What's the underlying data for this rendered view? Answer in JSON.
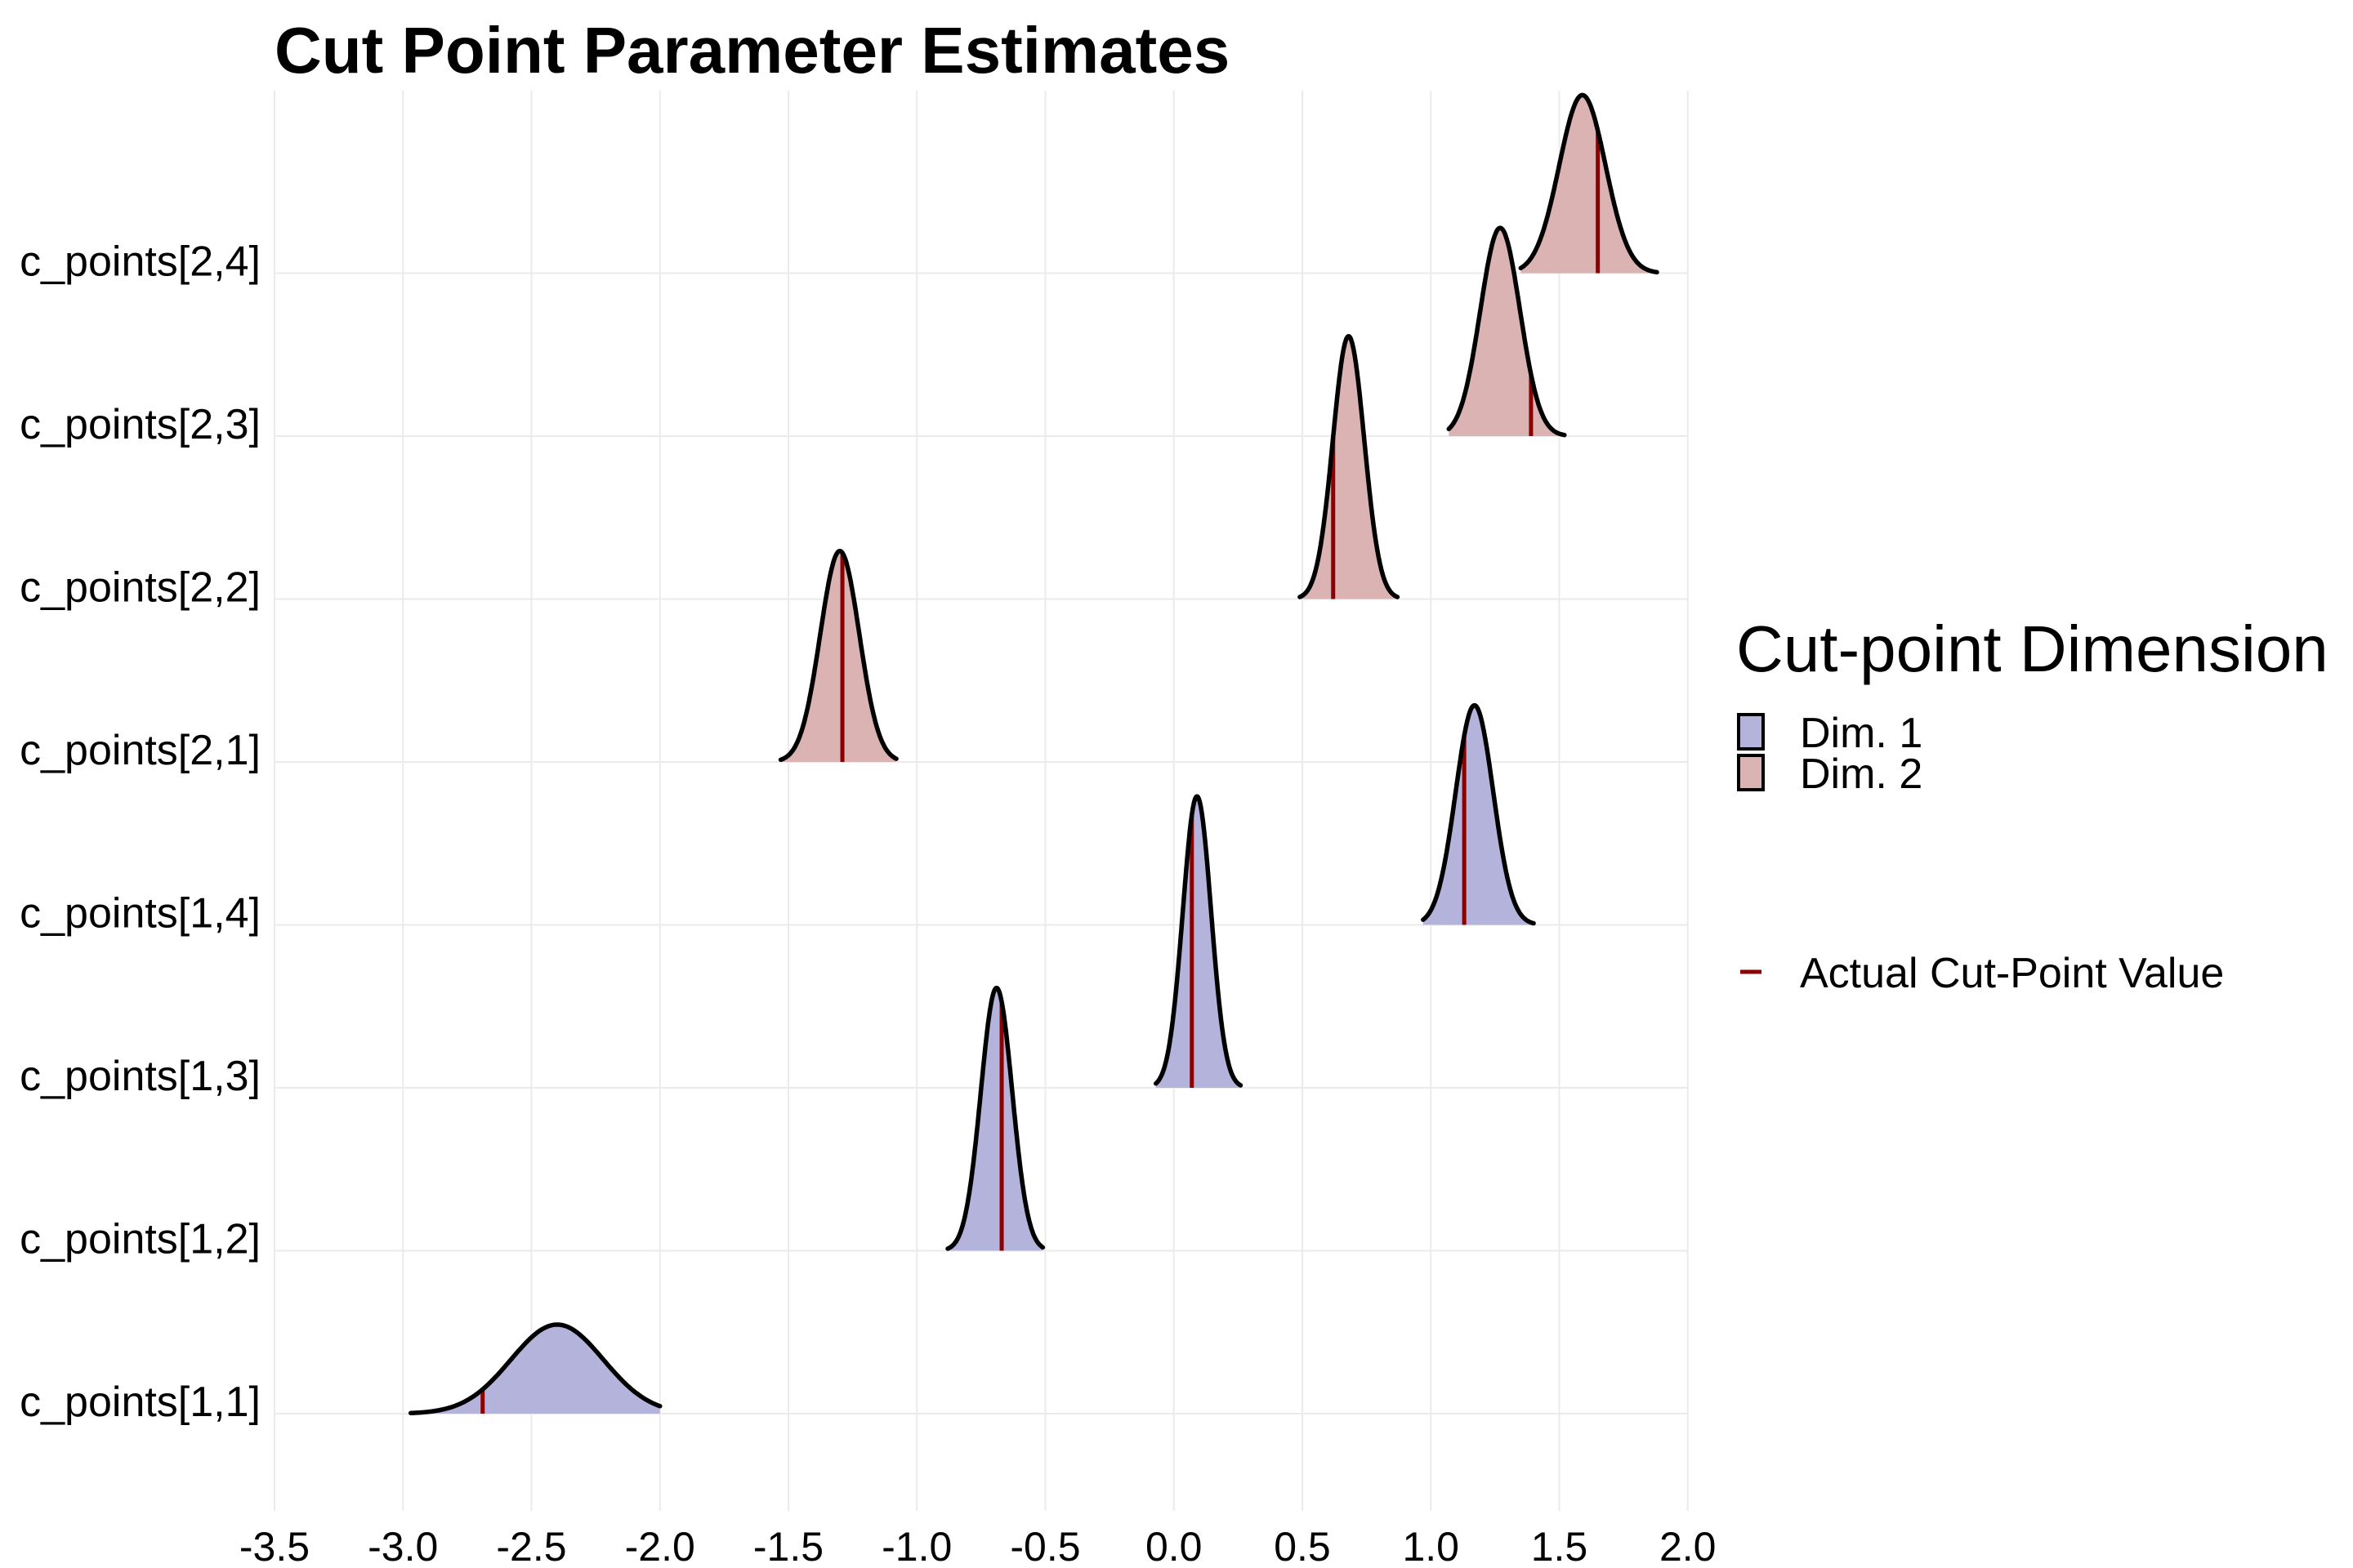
{
  "chart_data": {
    "type": "area",
    "title": "Cut Point Parameter Estimates",
    "xlim": [
      -3.5,
      2.0
    ],
    "x_ticks": [
      "-3.5",
      "-3.0",
      "-2.5",
      "-2.0",
      "-1.5",
      "-1.0",
      "-0.5",
      "0.0",
      "0.5",
      "1.0",
      "1.5",
      "2.0"
    ],
    "grid": true,
    "legend": {
      "title": "Cut-point Dimension",
      "position": "right"
    },
    "series": [
      {
        "name": "Dim. 1",
        "color": "#b3b3dc",
        "parameters": [
          {
            "label": "c_points[1,1]",
            "center": -2.4,
            "sd": 0.18,
            "min": -2.97,
            "max": -2.0,
            "actual": -2.69
          },
          {
            "label": "c_points[1,2]",
            "center": -0.69,
            "sd": 0.061,
            "min": -0.88,
            "max": -0.51,
            "actual": -0.67
          },
          {
            "label": "c_points[1,3]",
            "center": 0.09,
            "sd": 0.055,
            "min": -0.07,
            "max": 0.26,
            "actual": 0.07
          },
          {
            "label": "c_points[1,4]",
            "center": 1.17,
            "sd": 0.073,
            "min": 0.97,
            "max": 1.4,
            "actual": 1.13
          }
        ]
      },
      {
        "name": "Dim. 2",
        "color": "#dcb3b3",
        "parameters": [
          {
            "label": "c_points[2,1]",
            "center": -1.3,
            "sd": 0.076,
            "min": -1.53,
            "max": -1.08,
            "actual": -1.29
          },
          {
            "label": "c_points[2,2]",
            "center": 0.68,
            "sd": 0.061,
            "min": 0.49,
            "max": 0.87,
            "actual": 0.62
          },
          {
            "label": "c_points[2,3]",
            "center": 1.27,
            "sd": 0.077,
            "min": 1.07,
            "max": 1.52,
            "actual": 1.39
          },
          {
            "label": "c_points[2,4]",
            "center": 1.59,
            "sd": 0.09,
            "min": 1.35,
            "max": 1.88,
            "actual": 1.65
          }
        ]
      }
    ],
    "actual_marker": {
      "name": "Actual Cut-Point Value",
      "color": "#8b0000"
    }
  }
}
